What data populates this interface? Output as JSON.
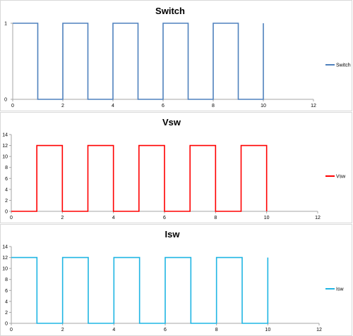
{
  "chart_data": [
    {
      "type": "line",
      "title": "Switch",
      "xlabel": "",
      "ylabel": "",
      "xlim": [
        0,
        12
      ],
      "ylim": [
        0,
        1
      ],
      "xticks": [
        0,
        2,
        4,
        6,
        8,
        10,
        12
      ],
      "yticks": [
        0,
        1
      ],
      "grid": false,
      "legend_position": "right",
      "series": [
        {
          "name": "Switch",
          "color": "#4f81bd",
          "x": [
            0,
            1,
            1,
            2,
            2,
            3,
            3,
            4,
            4,
            5,
            5,
            6,
            6,
            7,
            7,
            8,
            8,
            9,
            9,
            10,
            10
          ],
          "y": [
            1,
            1,
            0,
            0,
            1,
            1,
            0,
            0,
            1,
            1,
            0,
            0,
            1,
            1,
            0,
            0,
            1,
            1,
            0,
            0,
            1
          ]
        }
      ]
    },
    {
      "type": "line",
      "title": "Vsw",
      "xlabel": "",
      "ylabel": "",
      "xlim": [
        0,
        12
      ],
      "ylim": [
        0,
        14
      ],
      "xticks": [
        0,
        2,
        4,
        6,
        8,
        10,
        12
      ],
      "yticks": [
        0,
        2,
        4,
        6,
        8,
        10,
        12,
        14
      ],
      "grid": false,
      "legend_position": "right",
      "series": [
        {
          "name": "Vsw",
          "color": "#ff0000",
          "x": [
            0,
            1,
            1,
            2,
            2,
            3,
            3,
            4,
            4,
            5,
            5,
            6,
            6,
            7,
            7,
            8,
            8,
            9,
            9,
            10,
            10
          ],
          "y": [
            0,
            0,
            12,
            12,
            0,
            0,
            12,
            12,
            0,
            0,
            12,
            12,
            0,
            0,
            12,
            12,
            0,
            0,
            12,
            12,
            0
          ]
        }
      ]
    },
    {
      "type": "line",
      "title": "Isw",
      "xlabel": "",
      "ylabel": "",
      "xlim": [
        0,
        12
      ],
      "ylim": [
        0,
        14
      ],
      "xticks": [
        0,
        2,
        4,
        6,
        8,
        10,
        12
      ],
      "yticks": [
        0,
        2,
        4,
        6,
        8,
        10,
        12,
        14
      ],
      "grid": false,
      "legend_position": "right",
      "series": [
        {
          "name": "Isw",
          "color": "#1fb5e3",
          "x": [
            0,
            1,
            1,
            2,
            2,
            3,
            3,
            4,
            4,
            5,
            5,
            6,
            6,
            7,
            7,
            8,
            8,
            9,
            9,
            10,
            10
          ],
          "y": [
            12,
            12,
            0,
            0,
            12,
            12,
            0,
            0,
            12,
            12,
            0,
            0,
            12,
            12,
            0,
            0,
            12,
            12,
            0,
            0,
            12
          ]
        }
      ]
    }
  ]
}
